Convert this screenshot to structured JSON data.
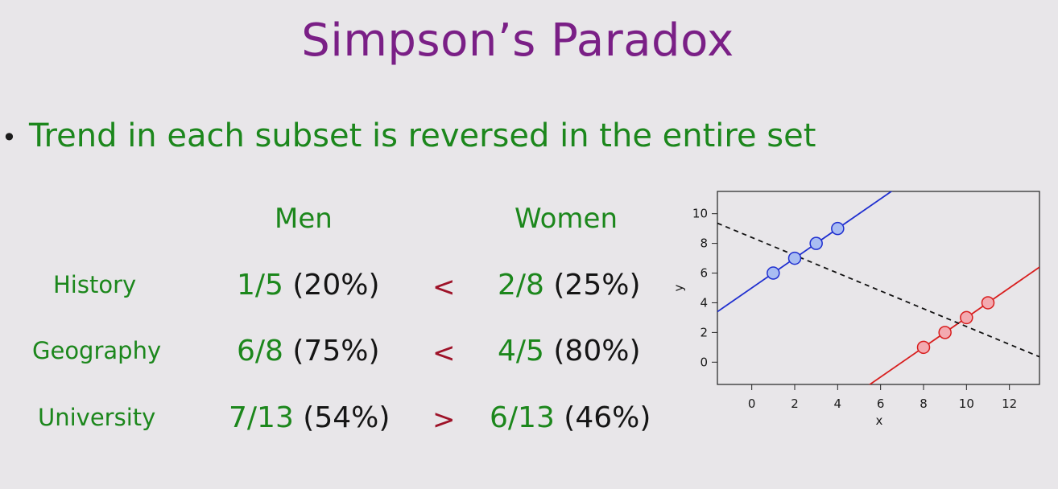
{
  "slide": {
    "title": "Simpson’s Paradox",
    "bullet": "Trend in each subset is reversed in the entire set"
  },
  "table": {
    "columns": [
      "Men",
      "Women"
    ],
    "rows": [
      {
        "label": "History",
        "men_frac": "1/5",
        "men_pct": "(20%)",
        "cmp": "<",
        "women_frac": "2/8",
        "women_pct": "(25%)"
      },
      {
        "label": "Geography",
        "men_frac": "6/8",
        "men_pct": "(75%)",
        "cmp": "<",
        "women_frac": "4/5",
        "women_pct": "(80%)"
      },
      {
        "label": "University",
        "men_frac": "7/13",
        "men_pct": "(54%)",
        "cmp": ">",
        "women_frac": "6/13",
        "women_pct": "(46%)"
      }
    ]
  },
  "chart_data": {
    "type": "scatter",
    "title": "",
    "xlabel": "x",
    "ylabel": "y",
    "xlim": [
      -1.6,
      13.4
    ],
    "ylim": [
      -1.5,
      11.5
    ],
    "xticks": [
      0,
      2,
      4,
      6,
      8,
      10,
      12
    ],
    "yticks": [
      0,
      2,
      4,
      6,
      8,
      10
    ],
    "grid": false,
    "series": [
      {
        "color": "#1f2fd0",
        "fill": "#a9bdf2",
        "points": [
          {
            "x": 1,
            "y": 6
          },
          {
            "x": 2,
            "y": 7
          },
          {
            "x": 3,
            "y": 8
          },
          {
            "x": 4,
            "y": 9
          }
        ],
        "fit": {
          "slope": 1,
          "intercept": 5,
          "style": "solid"
        }
      },
      {
        "color": "#d81e1e",
        "fill": "#f3aab0",
        "points": [
          {
            "x": 8,
            "y": 1
          },
          {
            "x": 9,
            "y": 2
          },
          {
            "x": 10,
            "y": 3
          },
          {
            "x": 11,
            "y": 4
          }
        ],
        "fit": {
          "slope": 1,
          "intercept": -7,
          "style": "solid"
        }
      }
    ],
    "overall_fit": {
      "slope": -0.6,
      "intercept": 8.4,
      "style": "dashed",
      "color": "#111111"
    }
  }
}
